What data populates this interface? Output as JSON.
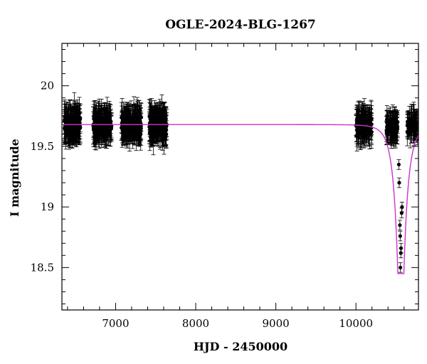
{
  "chart_data": {
    "type": "scatter",
    "title": "OGLE-2024-BLG-1267",
    "xlabel": "HJD - 2450000",
    "ylabel": "I magnitude",
    "xlim": [
      6330,
      10780
    ],
    "ylim": [
      20.35,
      18.15
    ],
    "y_inverted": true,
    "x_ticks": [
      7000,
      8000,
      9000,
      10000
    ],
    "y_ticks": [
      18.5,
      19,
      19.5,
      20
    ],
    "y_tick_labels": [
      "18.5",
      "19",
      "19.5",
      "20"
    ],
    "grid": false,
    "colors": {
      "points": "#000000",
      "model": "#cc33cc"
    },
    "data_segments": [
      {
        "x_range": [
          6360,
          6560
        ],
        "count": 140,
        "mean_mag": 19.68,
        "scatter": 0.1,
        "err": 0.12
      },
      {
        "x_range": [
          6720,
          6950
        ],
        "count": 140,
        "mean_mag": 19.68,
        "scatter": 0.1,
        "err": 0.12
      },
      {
        "x_range": [
          7070,
          7320
        ],
        "count": 150,
        "mean_mag": 19.68,
        "scatter": 0.1,
        "err": 0.12
      },
      {
        "x_range": [
          7420,
          7640
        ],
        "count": 140,
        "mean_mag": 19.68,
        "scatter": 0.1,
        "err": 0.12
      },
      {
        "x_range": [
          10000,
          10200
        ],
        "count": 100,
        "mean_mag": 19.68,
        "scatter": 0.1,
        "err": 0.12
      },
      {
        "x_range": [
          10380,
          10520
        ],
        "count": 80,
        "mean_mag": 19.66,
        "scatter": 0.08,
        "err": 0.1
      },
      {
        "x_range": [
          10640,
          10780
        ],
        "count": 60,
        "mean_mag": 19.68,
        "scatter": 0.07,
        "err": 0.1
      }
    ],
    "event_points": [
      {
        "x": 10555,
        "y": 18.5
      },
      {
        "x": 10560,
        "y": 18.62
      },
      {
        "x": 10563,
        "y": 18.66
      },
      {
        "x": 10552,
        "y": 18.76
      },
      {
        "x": 10548,
        "y": 18.85
      },
      {
        "x": 10570,
        "y": 18.95
      },
      {
        "x": 10575,
        "y": 19.0
      },
      {
        "x": 10540,
        "y": 19.2
      },
      {
        "x": 10535,
        "y": 19.35
      }
    ],
    "model": {
      "type": "microlensing-pspl",
      "baseline_mag": 19.68,
      "t0": 10560,
      "tE": 30,
      "u0": 0.62
    }
  }
}
